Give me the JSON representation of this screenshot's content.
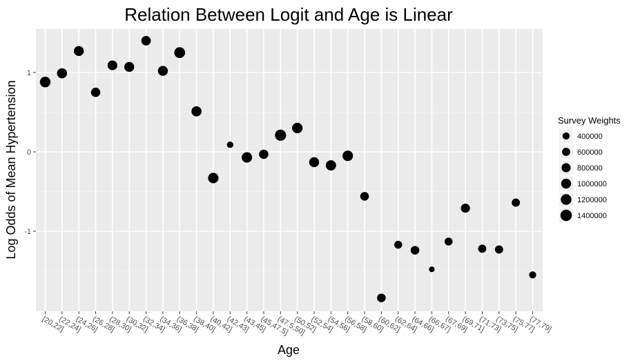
{
  "chart_data": {
    "type": "scatter",
    "title": "Relation Between Logit and Age is Linear",
    "xlabel": "Age",
    "ylabel": "Log Odds of Mean Hypertension",
    "categories": [
      "[20,22]",
      "(22,24]",
      "(24,26]",
      "(26,28]",
      "(28,30]",
      "(30,32]",
      "(32,34]",
      "(34,36]",
      "(36,38]",
      "(38,40]",
      "(40,42]",
      "(42,43]",
      "(43,45]",
      "(45,47.5]",
      "(47.5,50]",
      "(50,52]",
      "(52,54]",
      "(54,56]",
      "(56,58]",
      "(58,60]",
      "(60,62]",
      "(62,64]",
      "(64,66]",
      "(66,67]",
      "(67,69]",
      "(69,71]",
      "(71,73]",
      "(73,75]",
      "(75,77]",
      "(77,79]"
    ],
    "values": [
      0.88,
      0.99,
      1.27,
      0.75,
      1.09,
      1.07,
      1.4,
      1.02,
      1.25,
      0.51,
      -0.33,
      0.09,
      -0.07,
      -0.03,
      0.21,
      0.3,
      -0.13,
      -0.17,
      -0.05,
      -0.56,
      -1.84,
      -1.17,
      -1.24,
      -1.48,
      -1.13,
      -0.71,
      -1.22,
      -1.23,
      -0.64,
      -1.55
    ],
    "weights": [
      1200000,
      1050000,
      1000000,
      850000,
      950000,
      1000000,
      900000,
      1000000,
      1250000,
      1050000,
      1150000,
      300000,
      1150000,
      850000,
      1350000,
      1150000,
      1000000,
      1100000,
      1150000,
      700000,
      700000,
      550000,
      700000,
      200000,
      550000,
      800000,
      600000,
      600000,
      600000,
      400000
    ],
    "ylim": [
      -2.0,
      1.5
    ],
    "yticks": [
      -1,
      0,
      1
    ],
    "legend": {
      "title": "Survey Weights",
      "entries": [
        {
          "label": "400000",
          "value": 400000
        },
        {
          "label": "600000",
          "value": 600000
        },
        {
          "label": "800000",
          "value": 800000
        },
        {
          "label": "1000000",
          "value": 1000000
        },
        {
          "label": "1200000",
          "value": 1200000
        },
        {
          "label": "1400000",
          "value": 1400000
        }
      ],
      "position": "right"
    },
    "grid": true,
    "colors": {
      "panel": "#ebebeb",
      "grid_major": "#ffffff",
      "grid_minor": "#f5f5f5",
      "point": "#000000",
      "tick_label": "#4d4d4d"
    }
  }
}
